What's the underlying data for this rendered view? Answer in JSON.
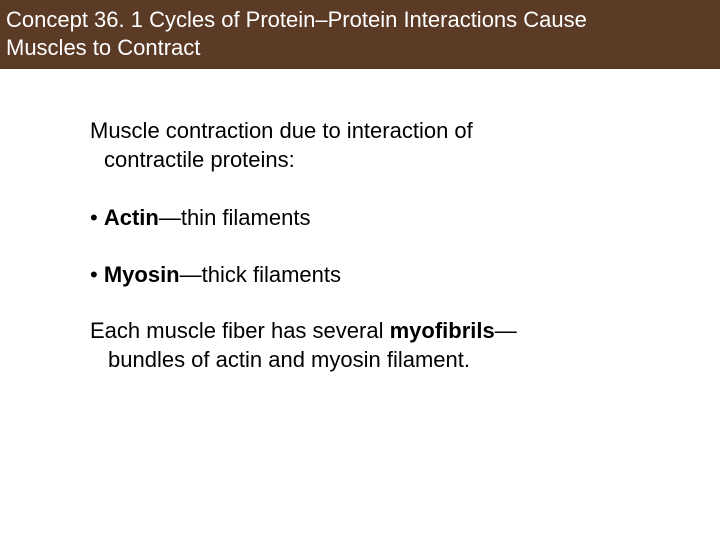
{
  "header": {
    "background_color": "#5b3b26",
    "text_color": "#ffffff",
    "line1": "Concept 36. 1 Cycles of Protein–Protein Interactions Cause",
    "line2": "Muscles to Contract",
    "font_size": 22
  },
  "body": {
    "intro_line1": "Muscle contraction due to interaction of",
    "intro_line2": "contractile proteins:",
    "bullet1_prefix": "• ",
    "bullet1_bold": "Actin",
    "bullet1_rest": "—thin filaments",
    "bullet2_prefix": "• ",
    "bullet2_bold": "Myosin",
    "bullet2_rest": "—thick filaments",
    "closing_line1_a": "Each muscle fiber has several ",
    "closing_line1_bold": "myofibrils",
    "closing_line1_b": "—",
    "closing_line2": "bundles of actin and myosin filament.",
    "text_color": "#000000",
    "font_size": 22,
    "background_color": "#ffffff"
  }
}
